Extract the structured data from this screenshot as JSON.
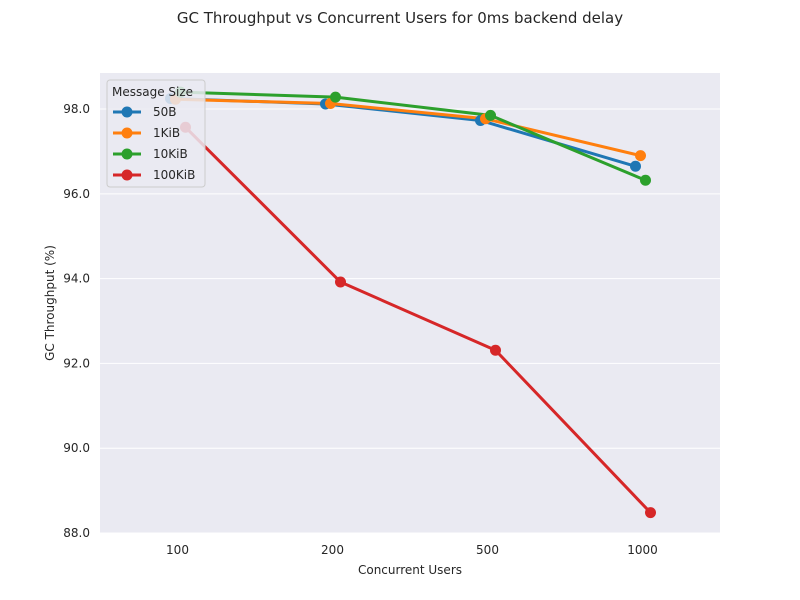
{
  "chart_data": {
    "type": "line",
    "title": "GC Throughput vs Concurrent Users for 0ms backend delay",
    "xlabel": "Concurrent Users",
    "ylabel": "GC Throughput (%)",
    "categories": [
      "100",
      "200",
      "500",
      "1000"
    ],
    "ylim": [
      88.0,
      98.85
    ],
    "yticks": [
      88.0,
      90.0,
      92.0,
      94.0,
      96.0,
      98.0
    ],
    "ytick_labels": [
      "88.0",
      "90.0",
      "92.0",
      "94.0",
      "96.0",
      "98.0"
    ],
    "grid": true,
    "legend": {
      "title": "Message Size",
      "placement": "top-left"
    },
    "series": [
      {
        "name": "50B",
        "color": "#1f77b4",
        "values": [
          98.25,
          98.12,
          97.73,
          96.65
        ]
      },
      {
        "name": "1KiB",
        "color": "#ff7f0e",
        "values": [
          98.23,
          98.13,
          97.77,
          96.9
        ]
      },
      {
        "name": "10KiB",
        "color": "#2ca02c",
        "values": [
          98.4,
          98.28,
          97.85,
          96.32
        ]
      },
      {
        "name": "100KiB",
        "color": "#d62728",
        "values": [
          97.57,
          93.92,
          92.31,
          88.48
        ]
      }
    ]
  }
}
